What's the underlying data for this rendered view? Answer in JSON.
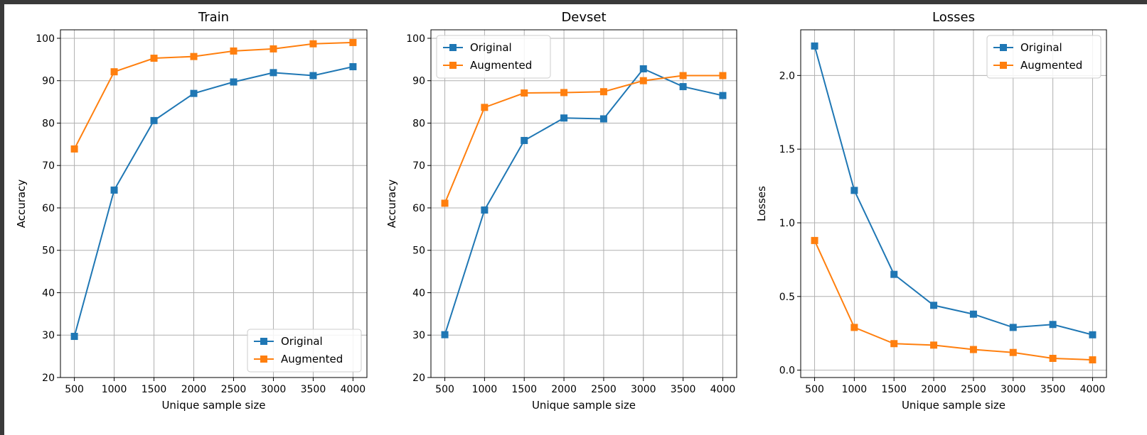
{
  "chart_data": [
    {
      "type": "line",
      "title": "Train",
      "xlabel": "Unique sample size",
      "ylabel": "Accuracy",
      "x": [
        500,
        1000,
        1500,
        2000,
        2500,
        3000,
        3500,
        4000
      ],
      "xticks": [
        "500",
        "1000",
        "1500",
        "2000",
        "2500",
        "3000",
        "3500",
        "4000"
      ],
      "ylim": [
        20,
        102
      ],
      "yticks": [
        20,
        30,
        40,
        50,
        60,
        70,
        80,
        90,
        100
      ],
      "ytick_labels": [
        "20",
        "30",
        "40",
        "50",
        "60",
        "70",
        "80",
        "90",
        "100"
      ],
      "grid": true,
      "legend": "lower-right",
      "series": [
        {
          "name": "Original",
          "color": "#1f77b4",
          "values": [
            29.7,
            64.2,
            80.6,
            87.0,
            89.7,
            91.9,
            91.2,
            93.3
          ]
        },
        {
          "name": "Augmented",
          "color": "#ff7f0e",
          "values": [
            73.9,
            92.1,
            95.3,
            95.7,
            97.0,
            97.5,
            98.7,
            99.0
          ]
        }
      ]
    },
    {
      "type": "line",
      "title": "Devset",
      "xlabel": "Unique sample size",
      "ylabel": "Accuracy",
      "x": [
        500,
        1000,
        1500,
        2000,
        2500,
        3000,
        3500,
        4000
      ],
      "xticks": [
        "500",
        "1000",
        "1500",
        "2000",
        "2500",
        "3000",
        "3500",
        "4000"
      ],
      "ylim": [
        20,
        102
      ],
      "yticks": [
        20,
        30,
        40,
        50,
        60,
        70,
        80,
        90,
        100
      ],
      "ytick_labels": [
        "20",
        "30",
        "40",
        "50",
        "60",
        "70",
        "80",
        "90",
        "100"
      ],
      "grid": true,
      "legend": "upper-left",
      "series": [
        {
          "name": "Original",
          "color": "#1f77b4",
          "values": [
            30.1,
            59.5,
            75.9,
            81.2,
            81.0,
            92.8,
            88.6,
            86.5
          ]
        },
        {
          "name": "Augmented",
          "color": "#ff7f0e",
          "values": [
            61.1,
            83.7,
            87.1,
            87.2,
            87.4,
            90.0,
            91.2,
            91.2
          ]
        }
      ]
    },
    {
      "type": "line",
      "title": "Losses",
      "xlabel": "Unique sample size",
      "ylabel": "Losses",
      "x": [
        500,
        1000,
        1500,
        2000,
        2500,
        3000,
        3500,
        4000
      ],
      "xticks": [
        "500",
        "1000",
        "1500",
        "2000",
        "2500",
        "3000",
        "3500",
        "4000"
      ],
      "ylim": [
        -0.05,
        2.31
      ],
      "yticks": [
        0.0,
        0.5,
        1.0,
        1.5,
        2.0
      ],
      "ytick_labels": [
        "0.0",
        "0.5",
        "1.0",
        "1.5",
        "2.0"
      ],
      "grid": true,
      "legend": "upper-right",
      "series": [
        {
          "name": "Original",
          "color": "#1f77b4",
          "values": [
            2.2,
            1.22,
            0.65,
            0.44,
            0.38,
            0.29,
            0.31,
            0.24
          ]
        },
        {
          "name": "Augmented",
          "color": "#ff7f0e",
          "values": [
            0.88,
            0.29,
            0.18,
            0.17,
            0.14,
            0.12,
            0.08,
            0.07
          ]
        }
      ]
    }
  ]
}
